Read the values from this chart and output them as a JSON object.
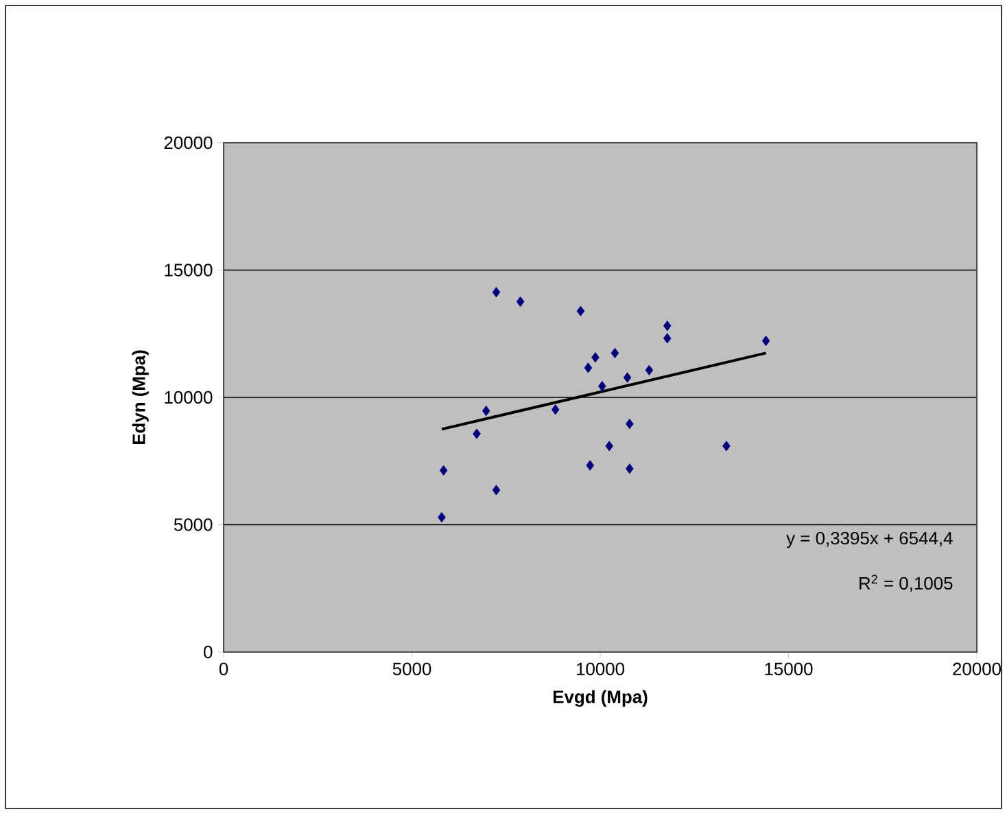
{
  "chart_data": {
    "type": "scatter",
    "xlabel": "Evgd (Mpa)",
    "ylabel": "Edyn (Mpa)",
    "xlim": [
      0,
      20000
    ],
    "ylim": [
      0,
      20000
    ],
    "xticks": [
      0,
      5000,
      10000,
      15000,
      20000
    ],
    "yticks": [
      0,
      5000,
      10000,
      15000,
      20000
    ],
    "grid": "y",
    "marker": "diamond",
    "series": [
      {
        "color": "#000080",
        "x": [
          7240,
          7880,
          9480,
          11780,
          11780,
          14400,
          10390,
          9870,
          9680,
          11300,
          10720,
          10050,
          6970,
          8810,
          6720,
          10780,
          10240,
          13350,
          5840,
          9730,
          10780,
          7240,
          5790
        ],
        "values": [
          14130,
          13760,
          13390,
          12810,
          12320,
          12220,
          11740,
          11570,
          11160,
          11070,
          10780,
          10440,
          9470,
          9520,
          8570,
          8960,
          8090,
          8090,
          7130,
          7330,
          7200,
          6360,
          5290
        ]
      },
      {
        "type": "line",
        "color": "#000000",
        "marker": "none",
        "x": [
          5790,
          14400
        ],
        "values": [
          8750,
          11740
        ]
      }
    ],
    "annotations": [
      "y = 0,3395x + 6544,4",
      "R$^{2}$ = 0,1005"
    ]
  }
}
